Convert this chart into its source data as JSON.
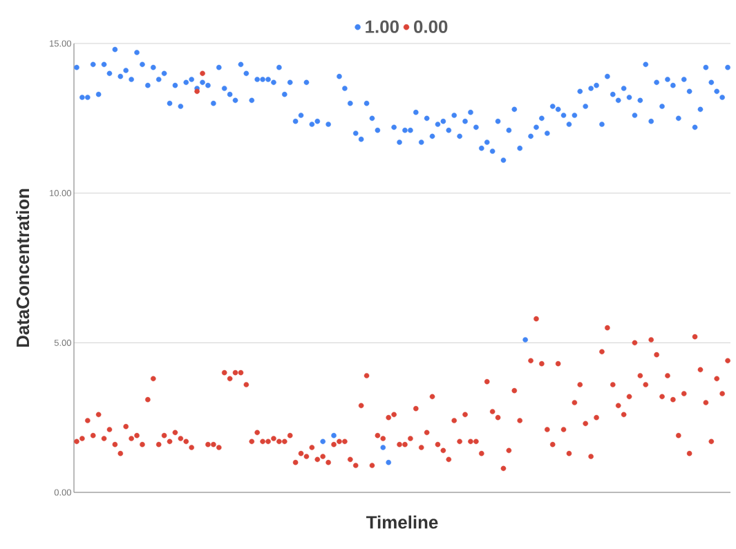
{
  "chart_data": {
    "type": "scatter",
    "xlabel": "Timeline",
    "ylabel": "DataConcentration",
    "categories": [
      null,
      null,
      null,
      null,
      null,
      null,
      null,
      null,
      null,
      null,
      null,
      null,
      null,
      null,
      null,
      null,
      null,
      null,
      null,
      null,
      null,
      null,
      null,
      null,
      null,
      null,
      null,
      null,
      null,
      null,
      null,
      null,
      null,
      null,
      null,
      null,
      null,
      null,
      null,
      null,
      null,
      null,
      null,
      null,
      null,
      null,
      null,
      null,
      null,
      null,
      null,
      null,
      null,
      null,
      null,
      null,
      null,
      null,
      null,
      null,
      null,
      null,
      null,
      null,
      null,
      null,
      null,
      null,
      null,
      null,
      null,
      null,
      null,
      null,
      null,
      null,
      null,
      null,
      null,
      null,
      null,
      null,
      null,
      null,
      null,
      null,
      null,
      null,
      null,
      null,
      null,
      null,
      null,
      null,
      null,
      null,
      null,
      null,
      null,
      null,
      null,
      null,
      null,
      null,
      null,
      null,
      null,
      null,
      null,
      null,
      null,
      null,
      null,
      null,
      null,
      null,
      null,
      null,
      null,
      null
    ],
    "series": [
      {
        "name": "1.00",
        "color": "#4285f4",
        "values": [
          14.2,
          13.2,
          13.2,
          14.3,
          13.3,
          14.3,
          14.0,
          14.8,
          13.9,
          14.1,
          13.8,
          14.7,
          14.3,
          13.6,
          14.2,
          13.8,
          14.0,
          13.0,
          13.6,
          12.9,
          13.7,
          13.8,
          13.5,
          13.7,
          13.6,
          13.0,
          14.2,
          13.5,
          13.3,
          13.1,
          14.3,
          14.0,
          13.1,
          13.8,
          13.8,
          13.8,
          13.7,
          14.2,
          13.3,
          13.7,
          12.4,
          12.6,
          13.7,
          12.3,
          12.4,
          1.7,
          12.3,
          1.9,
          13.9,
          13.5,
          13.0,
          12.0,
          11.8,
          13.0,
          12.5,
          12.1,
          1.5,
          1.0,
          12.2,
          11.7,
          12.1,
          12.1,
          12.7,
          11.7,
          12.5,
          11.9,
          12.3,
          12.4,
          12.1,
          12.6,
          11.9,
          12.4,
          12.7,
          12.2,
          11.5,
          11.7,
          11.4,
          12.4,
          11.1,
          12.1,
          12.8,
          11.5,
          5.1,
          11.9,
          12.2,
          12.5,
          12.0,
          12.9,
          12.8,
          12.6,
          12.3,
          12.6,
          13.4,
          12.9,
          13.5,
          13.6,
          12.3,
          13.9,
          13.3,
          13.1,
          13.5,
          13.2,
          12.6,
          13.1,
          14.3,
          12.4,
          13.7,
          12.9,
          13.8,
          13.6,
          12.5,
          13.8,
          13.4,
          12.2,
          12.8,
          14.2,
          13.7,
          13.4,
          13.2,
          14.2
        ]
      },
      {
        "name": "0.00",
        "color": "#db4437",
        "values": [
          1.7,
          1.8,
          2.4,
          1.9,
          2.6,
          1.8,
          2.1,
          1.6,
          1.3,
          2.2,
          1.8,
          1.9,
          1.6,
          3.1,
          3.8,
          1.6,
          1.9,
          1.7,
          2.0,
          1.8,
          1.7,
          1.5,
          13.4,
          14.0,
          1.6,
          1.6,
          1.5,
          4.0,
          3.8,
          4.0,
          4.0,
          3.6,
          1.7,
          2.0,
          1.7,
          1.7,
          1.8,
          1.7,
          1.7,
          1.9,
          1.0,
          1.3,
          1.2,
          1.5,
          1.1,
          1.2,
          1.0,
          1.6,
          1.7,
          1.7,
          1.1,
          0.9,
          2.9,
          3.9,
          0.9,
          1.9,
          1.8,
          2.5,
          2.6,
          1.6,
          1.6,
          1.8,
          2.8,
          1.5,
          2.0,
          3.2,
          1.6,
          1.4,
          1.1,
          2.4,
          1.7,
          2.6,
          1.7,
          1.7,
          1.3,
          3.7,
          2.7,
          2.5,
          0.8,
          1.4,
          3.4,
          2.4,
          null,
          4.4,
          5.8,
          4.3,
          2.1,
          1.6,
          4.3,
          2.1,
          1.3,
          3.0,
          3.6,
          2.3,
          1.2,
          2.5,
          4.7,
          5.5,
          3.6,
          2.9,
          2.6,
          3.2,
          5.0,
          3.9,
          3.6,
          5.1,
          4.6,
          3.2,
          3.9,
          3.1,
          1.9,
          3.3,
          1.3,
          5.2,
          4.1,
          3.0,
          1.7,
          3.8,
          3.3,
          4.4
        ]
      }
    ],
    "ylim": [
      0,
      15
    ],
    "yticks": [
      {
        "value": 0,
        "label": "0.00"
      },
      {
        "value": 5,
        "label": "5.00"
      },
      {
        "value": 10,
        "label": "10.00"
      },
      {
        "value": 15,
        "label": "15.00"
      }
    ],
    "grid": "y",
    "legend": "top",
    "tick_labels": "y",
    "marker": "circle"
  }
}
